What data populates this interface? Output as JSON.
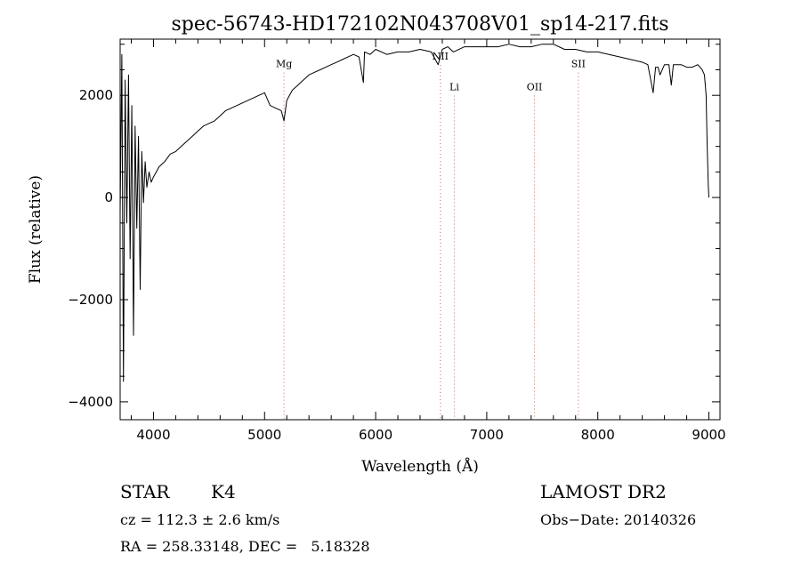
{
  "chart_data": {
    "type": "line",
    "title": "spec-56743-HD172102N043708V01_sp14-217.fits",
    "xlabel": "Wavelength (Å)",
    "ylabel": "Flux (relative)",
    "xlim": [
      3700,
      9100
    ],
    "ylim": [
      -4350,
      3100
    ],
    "xticks": [
      4000,
      5000,
      6000,
      7000,
      8000,
      9000
    ],
    "xtick_labels": [
      "4000",
      "5000",
      "6000",
      "7000",
      "8000",
      "9000"
    ],
    "yticks": [
      -4000,
      -2000,
      0,
      2000
    ],
    "ytick_labels": [
      "−4000",
      "−2000",
      "0",
      "2000"
    ],
    "grid": false,
    "series": [
      {
        "x": [
          3700,
          3715,
          3730,
          3745,
          3760,
          3775,
          3790,
          3805,
          3820,
          3835,
          3850,
          3865,
          3880,
          3895,
          3910,
          3925,
          3940,
          3960,
          3980,
          4000,
          4050,
          4100,
          4150,
          4200,
          4250,
          4300,
          4350,
          4400,
          4450,
          4500,
          4550,
          4600,
          4650,
          4700,
          4750,
          4800,
          4850,
          4900,
          4950,
          5000,
          5050,
          5100,
          5150,
          5175,
          5200,
          5250,
          5300,
          5350,
          5400,
          5450,
          5500,
          5550,
          5600,
          5650,
          5700,
          5750,
          5800,
          5850,
          5890,
          5900,
          5950,
          6000,
          6100,
          6200,
          6300,
          6400,
          6500,
          6563,
          6600,
          6650,
          6700,
          6800,
          6900,
          7000,
          7100,
          7200,
          7300,
          7400,
          7500,
          7600,
          7700,
          7800,
          7900,
          8000,
          8100,
          8200,
          8300,
          8400,
          8450,
          8498,
          8520,
          8542,
          8560,
          8600,
          8640,
          8662,
          8680,
          8750,
          8800,
          8850,
          8900,
          8940,
          8960,
          8975,
          8985,
          8995,
          9000
        ],
        "y": [
          -300,
          2800,
          -3600,
          2300,
          -500,
          2400,
          -1200,
          1800,
          -2700,
          1400,
          -600,
          1200,
          -1800,
          900,
          -100,
          700,
          200,
          500,
          300,
          400,
          600,
          700,
          850,
          900,
          1000,
          1100,
          1200,
          1300,
          1400,
          1450,
          1500,
          1600,
          1700,
          1750,
          1800,
          1850,
          1900,
          1950,
          2000,
          2050,
          1800,
          1750,
          1700,
          1500,
          1900,
          2100,
          2200,
          2300,
          2400,
          2450,
          2500,
          2550,
          2600,
          2650,
          2700,
          2750,
          2800,
          2750,
          2250,
          2850,
          2800,
          2900,
          2800,
          2850,
          2850,
          2900,
          2850,
          2600,
          2900,
          2950,
          2850,
          2950,
          2950,
          2950,
          2950,
          3000,
          2950,
          2950,
          3000,
          3000,
          2900,
          2900,
          2850,
          2850,
          2800,
          2750,
          2700,
          2650,
          2600,
          2050,
          2550,
          2550,
          2400,
          2600,
          2600,
          2200,
          2600,
          2600,
          2550,
          2550,
          2600,
          2500,
          2400,
          2000,
          1000,
          200,
          0
        ]
      }
    ],
    "lines": [
      {
        "label": "Mg",
        "x": 5175
      },
      {
        "label": "NII",
        "x": 6583
      },
      {
        "label": "Li",
        "x": 6708
      },
      {
        "label": "OII",
        "x": 7430
      },
      {
        "label": "SII",
        "x": 7825
      }
    ],
    "line_label_y": [
      2550,
      2700,
      2100,
      2100,
      2550
    ]
  },
  "info": {
    "class_label": "STAR",
    "subclass": "K4",
    "survey": "LAMOST DR2",
    "cz": "cz = 112.3 ± 2.6 km/s",
    "obs_date": "Obs−Date: 20140326",
    "coords": "RA = 258.33148, DEC =   5.18328"
  }
}
